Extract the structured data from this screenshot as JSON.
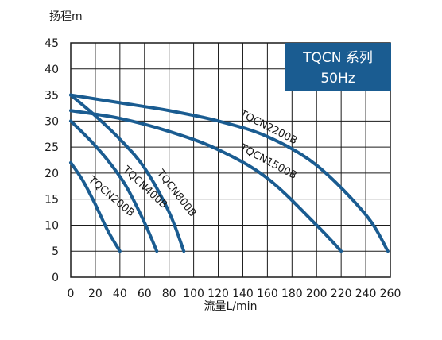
{
  "chart_data": {
    "type": "line",
    "title": "TQCN 系列",
    "subtitle": "50Hz",
    "xlabel": "流量L/min",
    "ylabel": "扬程m",
    "xlim": [
      0,
      260
    ],
    "ylim": [
      0,
      45
    ],
    "xticks": [
      "0",
      "20",
      "40",
      "60",
      "80",
      "100",
      "120",
      "140",
      "160",
      "180",
      "200",
      "220",
      "240",
      "260"
    ],
    "yticks": [
      "0",
      "5",
      "10",
      "15",
      "20",
      "25",
      "30",
      "35",
      "40",
      "45"
    ],
    "grid": true,
    "legend": "none",
    "colors": {
      "line": "#1a5c91",
      "frame": "#1a1a1a",
      "grid": "#1a1a1a",
      "title_bg": "#1a5c91",
      "title_text": "#ffffff"
    },
    "series": [
      {
        "name": "TQCN200B",
        "x": [
          0,
          10,
          20,
          30,
          40
        ],
        "y": [
          22,
          18.5,
          14,
          9,
          5
        ]
      },
      {
        "name": "TQCN400B",
        "x": [
          0,
          15,
          30,
          45,
          60,
          70
        ],
        "y": [
          30,
          26.5,
          22.5,
          17.5,
          10.5,
          5
        ]
      },
      {
        "name": "TQCN800B",
        "x": [
          0,
          20,
          40,
          60,
          80,
          92
        ],
        "y": [
          35,
          31,
          26.5,
          21,
          12.5,
          5
        ]
      },
      {
        "name": "TQCN1500B",
        "x": [
          0,
          40,
          80,
          120,
          160,
          200,
          220
        ],
        "y": [
          32,
          30.5,
          28,
          24.5,
          19,
          10,
          5
        ]
      },
      {
        "name": "TQCN2200B",
        "x": [
          0,
          40,
          80,
          120,
          160,
          200,
          240,
          258
        ],
        "y": [
          35,
          33.5,
          32,
          30,
          27,
          21.5,
          12,
          5
        ]
      }
    ]
  }
}
